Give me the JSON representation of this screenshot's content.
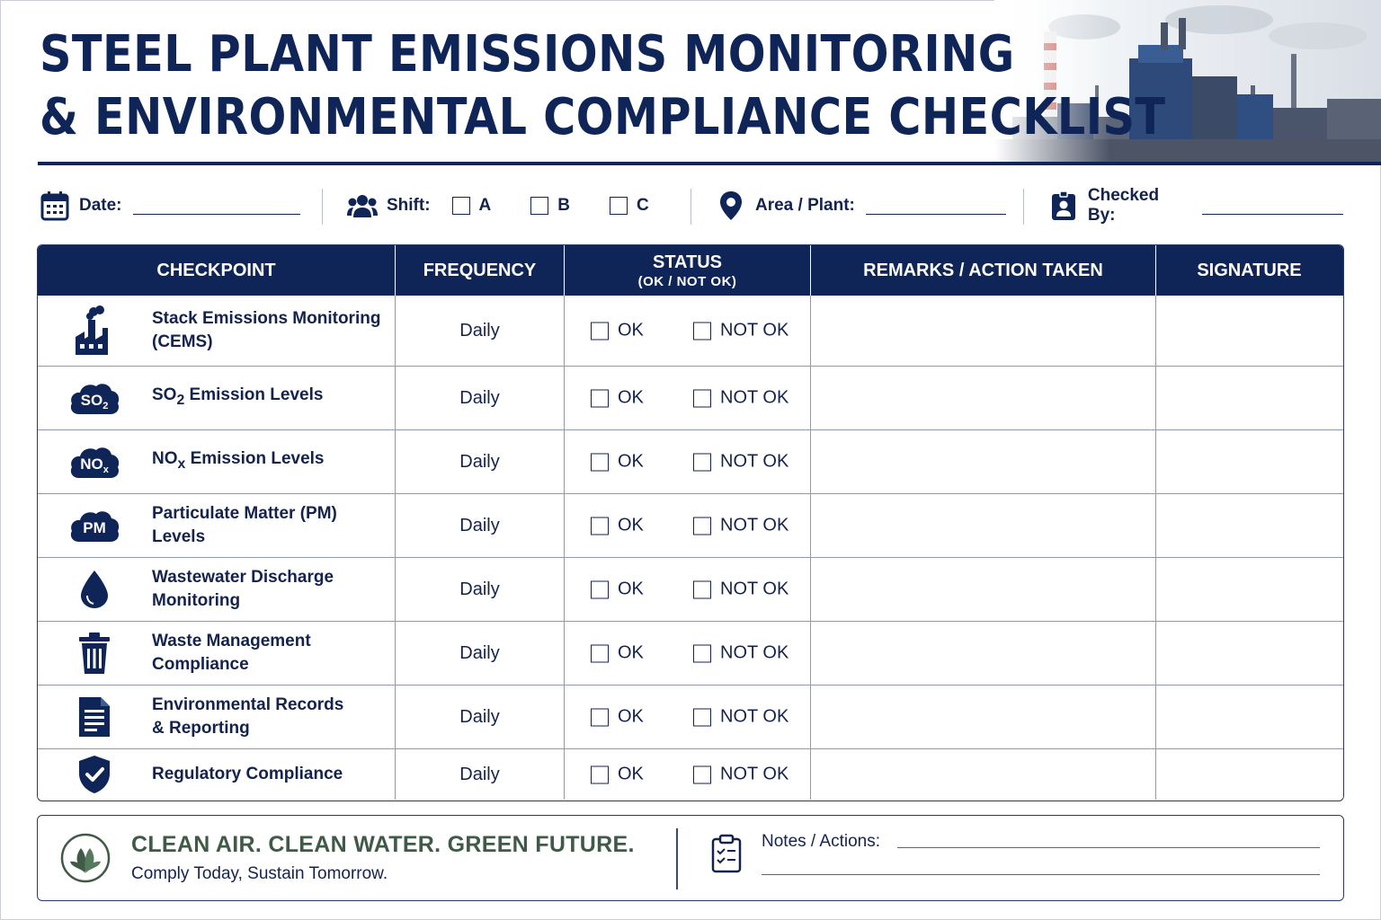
{
  "header": {
    "title_line1": "STEEL PLANT EMISSIONS MONITORING",
    "title_line2": "& ENVIRONMENTAL COMPLIANCE CHECKLIST"
  },
  "meta": {
    "date_label": "Date:",
    "shift_label": "Shift:",
    "shift_options": [
      "A",
      "B",
      "C"
    ],
    "area_label": "Area / Plant:",
    "checked_by_label": "Checked By:"
  },
  "table": {
    "headers": {
      "checkpoint": "CHECKPOINT",
      "frequency": "FREQUENCY",
      "status": "STATUS",
      "status_sub": "(OK / NOT OK)",
      "remarks": "REMARKS / ACTION TAKEN",
      "signature": "SIGNATURE"
    },
    "ok_label": "OK",
    "not_ok_label": "NOT OK",
    "rows": [
      {
        "icon": "factory-smoke-icon",
        "label_html": "Stack Emissions Monitoring<br>(CEMS)",
        "label": "Stack Emissions Monitoring (CEMS)",
        "frequency": "Daily"
      },
      {
        "icon": "so2-cloud-icon",
        "badge": "SO",
        "badge_sub": "2",
        "label_html": "SO<sub>2</sub> Emission Levels",
        "label": "SO2 Emission Levels",
        "frequency": "Daily"
      },
      {
        "icon": "nox-cloud-icon",
        "badge": "NO",
        "badge_sub": "x",
        "label_html": "NO<sub>x</sub> Emission Levels",
        "label": "NOx Emission Levels",
        "frequency": "Daily"
      },
      {
        "icon": "pm-cloud-icon",
        "badge": "PM",
        "badge_sub": "",
        "label_html": "Particulate Matter (PM)<br>Levels",
        "label": "Particulate Matter (PM) Levels",
        "frequency": "Daily"
      },
      {
        "icon": "water-drop-icon",
        "label_html": "Wastewater Discharge<br>Monitoring",
        "label": "Wastewater Discharge Monitoring",
        "frequency": "Daily"
      },
      {
        "icon": "trash-bin-icon",
        "label_html": "Waste Management<br>Compliance",
        "label": "Waste Management Compliance",
        "frequency": "Daily"
      },
      {
        "icon": "document-icon",
        "label_html": "Environmental Records<br>& Reporting",
        "label": "Environmental Records & Reporting",
        "frequency": "Daily"
      },
      {
        "icon": "shield-check-icon",
        "label_html": "Regulatory Compliance",
        "label": "Regulatory Compliance",
        "frequency": "Daily"
      }
    ]
  },
  "footer": {
    "slogan": "CLEAN AIR. CLEAN WATER. GREEN FUTURE.",
    "tagline": "Comply Today, Sustain Tomorrow.",
    "notes_label": "Notes / Actions:"
  },
  "colors": {
    "navy": "#0f2557",
    "slogan_green": "#3f5a47",
    "border": "#8f99ad"
  }
}
